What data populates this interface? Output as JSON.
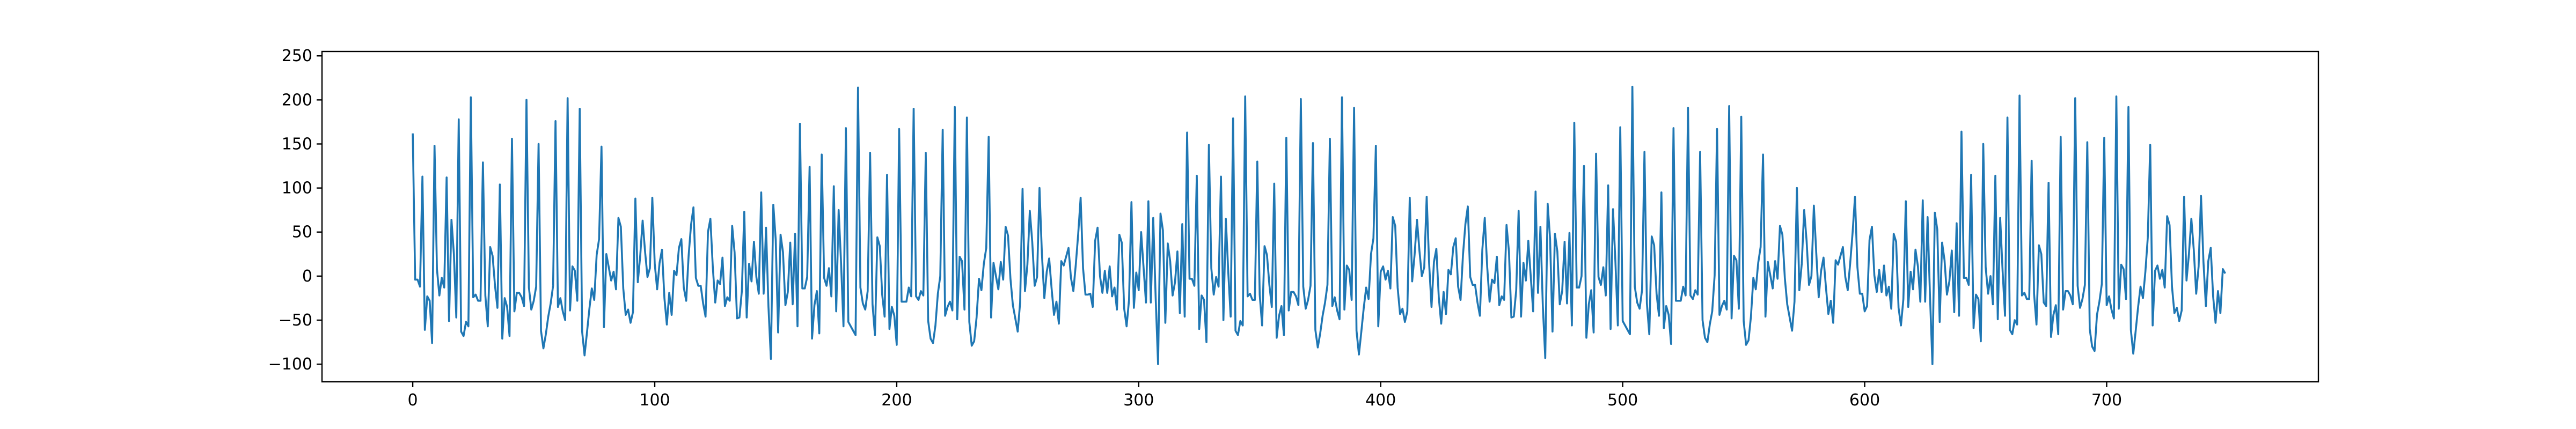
{
  "chart_data": {
    "type": "line",
    "title": "",
    "xlabel": "",
    "ylabel": "",
    "xlim": [
      -37.5,
      787.5
    ],
    "ylim": [
      -120,
      255
    ],
    "xticks": [
      0,
      100,
      200,
      300,
      400,
      500,
      600,
      700
    ],
    "yticks": [
      -100,
      -50,
      0,
      50,
      100,
      150,
      200,
      250
    ],
    "grid": false,
    "legend": "none",
    "series": [
      {
        "color": "#1f77b4",
        "x_start": 0,
        "x_step": 1,
        "values": [
          172,
          -10,
          -5,
          -8,
          122,
          -68,
          -25,
          -25,
          -68,
          140,
          5,
          -20,
          5,
          -22,
          108,
          -50,
          70,
          15,
          -52,
          178,
          -58,
          -58,
          -58,
          -58,
          207,
          -15,
          -28,
          -30,
          -25,
          137,
          -30,
          -60,
          35,
          30,
          -20,
          -40,
          105,
          -65,
          -35,
          -40,
          -68,
          161,
          -30,
          -25,
          -20,
          -20,
          -25,
          193,
          -15,
          -35,
          -20,
          -20,
          147,
          -60,
          -75,
          -75,
          -50,
          -30,
          -5,
          166,
          -40,
          -25,
          -35,
          -40,
          196,
          -40,
          15,
          15,
          -35,
          188,
          -60,
          -82,
          -72,
          -40,
          -12,
          -20,
          15,
          38,
          148,
          -52,
          15,
          5,
          -5,
          10,
          -5,
          60,
          55,
          -10,
          -35,
          -45,
          -55,
          -38,
          96,
          -15,
          20,
          65,
          35,
          -10,
          5,
          90,
          20,
          -25,
          10,
          30,
          -20,
          -45,
          -25,
          -45,
          10,
          10,
          25,
          40,
          -10,
          -20,
          15,
          55,
          80,
          5,
          -20,
          -15,
          -30,
          -40,
          40,
          60,
          10,
          -25,
          5,
          -15,
          20,
          -30,
          -15,
          -35,
          55,
          30,
          -40,
          -55,
          -20,
          75,
          -40,
          5,
          -10,
          40,
          5,
          -30,
          90,
          -20,
          60,
          -25,
          -100,
          80,
          45,
          -55,
          40,
          25,
          -30,
          -10,
          30,
          -35,
          50,
          -50
        ]
      }
    ]
  }
}
